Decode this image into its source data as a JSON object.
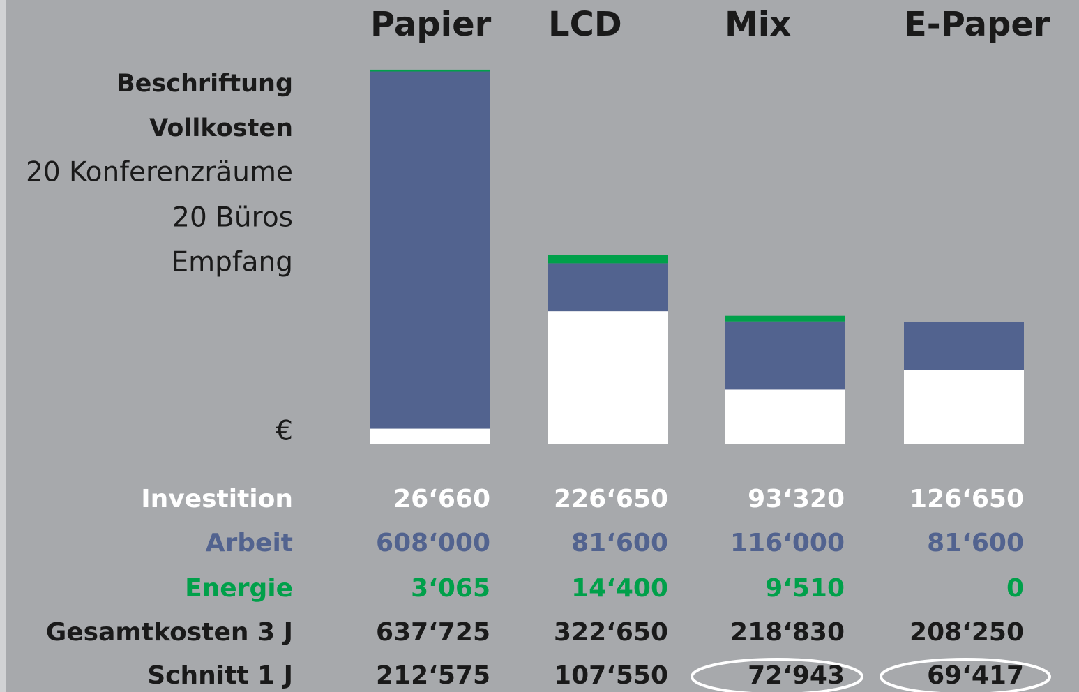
{
  "chart_data": {
    "type": "stacked_bar",
    "title": [
      "Beschriftung",
      "Vollkosten"
    ],
    "subtitle": [
      "20 Konferenzräume",
      "20 Büros",
      "Empfang"
    ],
    "unit": "€",
    "categories": [
      "Papier",
      "LCD",
      "Mix",
      "E-Paper"
    ],
    "ylim": [
      0,
      640000
    ],
    "series": [
      {
        "name": "Investition",
        "color": "#ffffff",
        "values": [
          26660,
          226650,
          93320,
          126650
        ],
        "value_labels": [
          "26‘660",
          "226‘650",
          "93‘320",
          "126‘650"
        ]
      },
      {
        "name": "Arbeit",
        "color": "#52638f",
        "values": [
          608000,
          81600,
          116000,
          81600
        ],
        "value_labels": [
          "608‘000",
          "81‘600",
          "116‘000",
          "81‘600"
        ]
      },
      {
        "name": "Energie",
        "color": "#00a04a",
        "values": [
          3065,
          14400,
          9510,
          0
        ],
        "value_labels": [
          "3‘065",
          "14‘400",
          "9‘510",
          "0"
        ]
      }
    ],
    "totals": {
      "name": "Gesamtkosten 3 J",
      "color": "#1a1a1a",
      "values": [
        637725,
        322650,
        218830,
        208250
      ],
      "value_labels": [
        "637‘725",
        "322‘650",
        "218‘830",
        "208‘250"
      ]
    },
    "averages": {
      "name": "Schnitt 1 J",
      "color": "#1a1a1a",
      "values": [
        212575,
        107550,
        72943,
        69417
      ],
      "value_labels": [
        "212‘575",
        "107‘550",
        "72‘943",
        "69‘417"
      ]
    }
  }
}
